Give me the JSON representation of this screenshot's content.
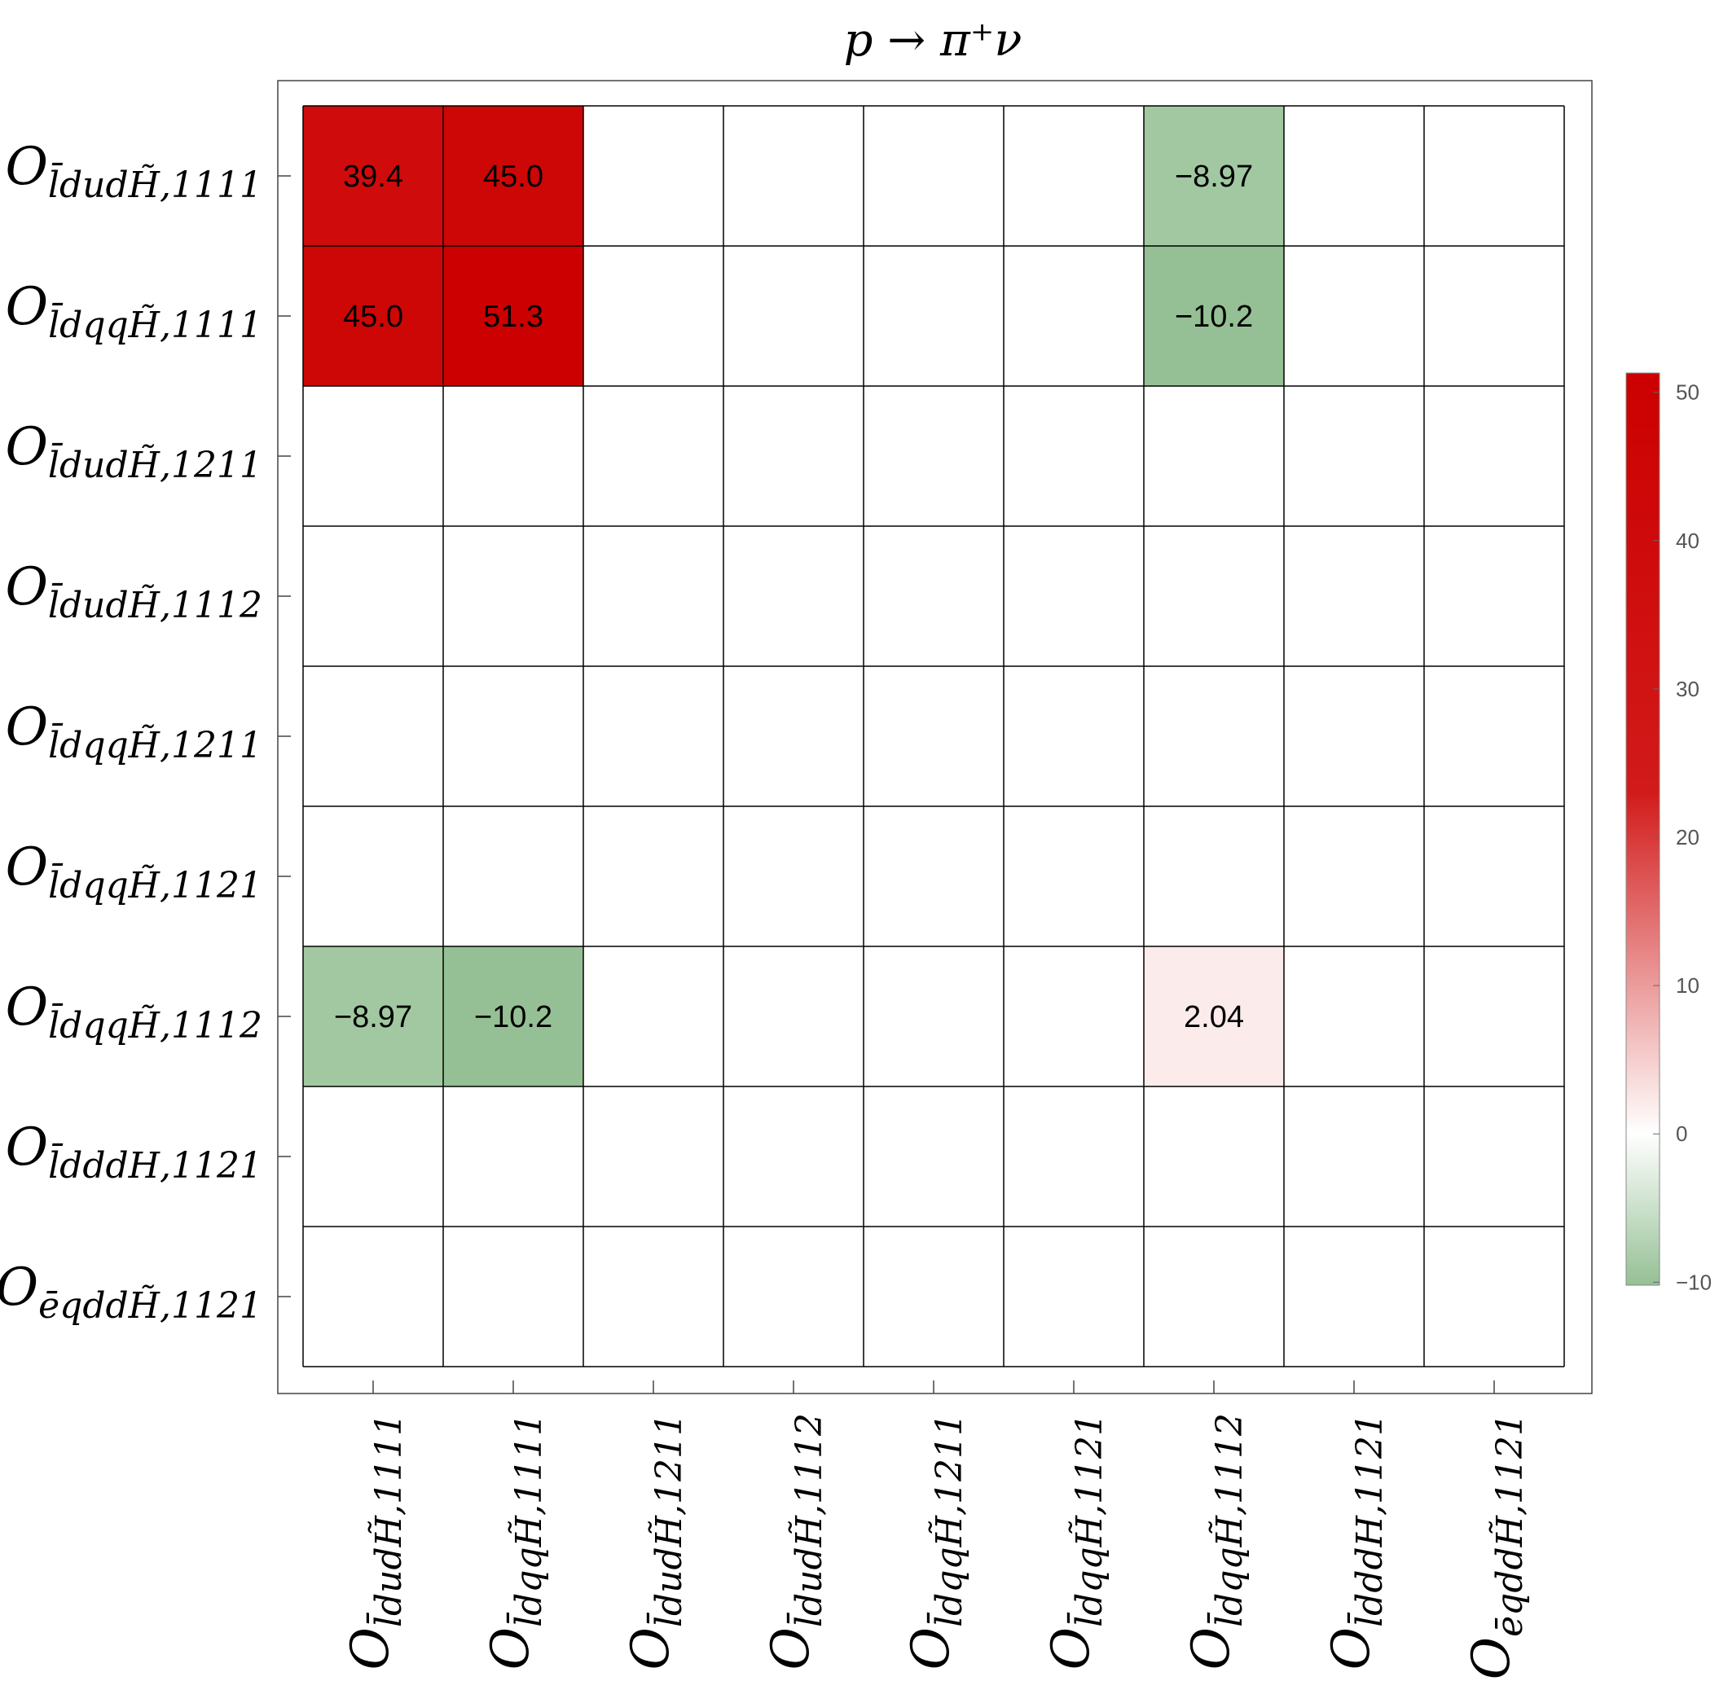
{
  "chart_data": {
    "type": "heatmap",
    "title": "p → π⁺ν",
    "row_labels": [
      {
        "script": "O",
        "sub": "l̄dudH̃,1111"
      },
      {
        "script": "O",
        "sub": "l̄dqqH̃,1111"
      },
      {
        "script": "O",
        "sub": "l̄dudH̃,1211"
      },
      {
        "script": "O",
        "sub": "l̄dudH̃,1112"
      },
      {
        "script": "O",
        "sub": "l̄dqqH̃,1211"
      },
      {
        "script": "O",
        "sub": "l̄dqqH̃,1121"
      },
      {
        "script": "O",
        "sub": "l̄dqqH̃,1112"
      },
      {
        "script": "O",
        "sub": "l̄dddH,1121"
      },
      {
        "script": "O",
        "sub": "ēqddH̃,1121"
      }
    ],
    "col_labels": [
      {
        "script": "O",
        "sub": "l̄dudH̃,1111"
      },
      {
        "script": "O",
        "sub": "l̄dqqH̃,1111"
      },
      {
        "script": "O",
        "sub": "l̄dudH̃,1211"
      },
      {
        "script": "O",
        "sub": "l̄dudH̃,1112"
      },
      {
        "script": "O",
        "sub": "l̄dqqH̃,1211"
      },
      {
        "script": "O",
        "sub": "l̄dqqH̃,1121"
      },
      {
        "script": "O",
        "sub": "l̄dqqH̃,1112"
      },
      {
        "script": "O",
        "sub": "l̄dddH,1121"
      },
      {
        "script": "O",
        "sub": "ēqddH̃,1121"
      }
    ],
    "cells": [
      {
        "row": 0,
        "col": 0,
        "value": 39.4,
        "label": "39.4"
      },
      {
        "row": 0,
        "col": 1,
        "value": 45.0,
        "label": "45.0"
      },
      {
        "row": 0,
        "col": 6,
        "value": -8.97,
        "label": "−8.97"
      },
      {
        "row": 1,
        "col": 0,
        "value": 45.0,
        "label": "45.0"
      },
      {
        "row": 1,
        "col": 1,
        "value": 51.3,
        "label": "51.3"
      },
      {
        "row": 1,
        "col": 6,
        "value": -10.2,
        "label": "−10.2"
      },
      {
        "row": 6,
        "col": 0,
        "value": -8.97,
        "label": "−8.97"
      },
      {
        "row": 6,
        "col": 1,
        "value": -10.2,
        "label": "−10.2"
      },
      {
        "row": 6,
        "col": 6,
        "value": 2.04,
        "label": "2.04"
      }
    ],
    "colorbar": {
      "range": [
        -10.2,
        51.3
      ],
      "ticks": [
        50,
        40,
        30,
        20,
        10,
        0,
        -10
      ],
      "tick_labels": [
        "50",
        "40",
        "30",
        "20",
        "10",
        "0",
        "−10"
      ],
      "colors": {
        "negative": "#95c095",
        "zero": "#ffffff",
        "mid": "#d21a1a",
        "positive": "#cc0000"
      }
    },
    "legend": "right"
  }
}
